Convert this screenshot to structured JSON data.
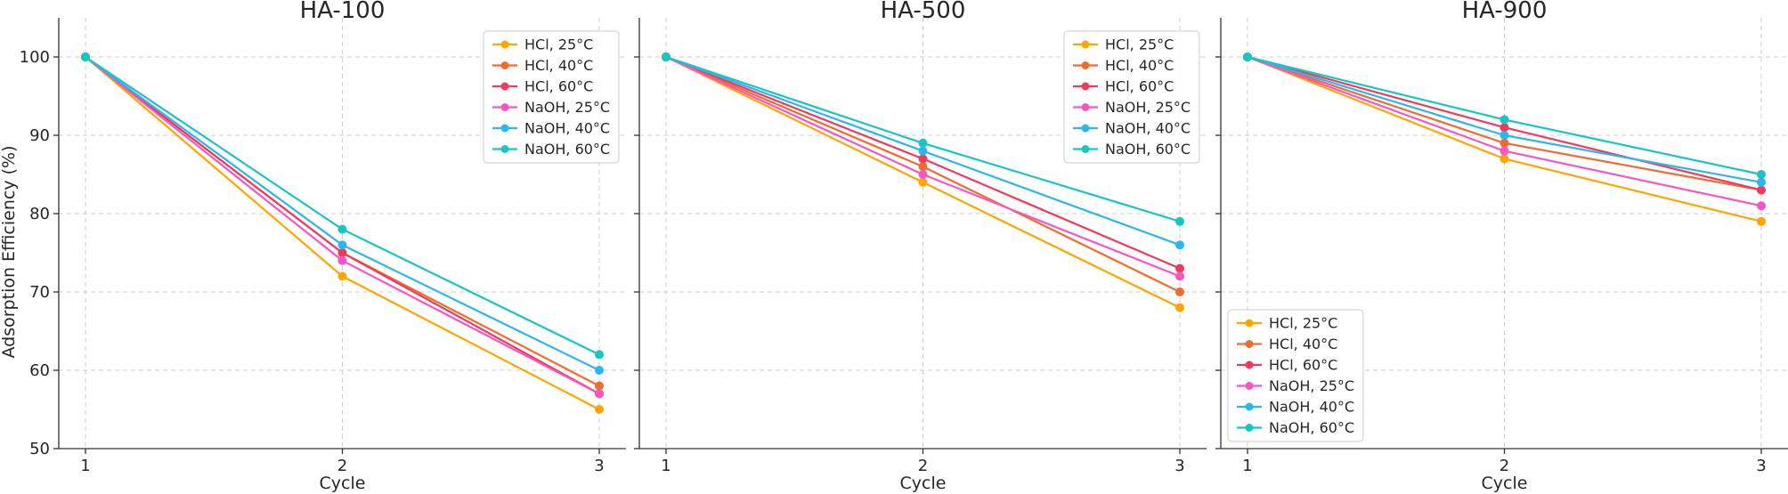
{
  "chart_data": {
    "type": "line",
    "xlabel": "Cycle",
    "ylabel": "Adsorption Efficiency (%)",
    "x": [
      1,
      2,
      3
    ],
    "ylim": [
      50,
      105
    ],
    "yticks": [
      50,
      60,
      70,
      80,
      90,
      100
    ],
    "grid": true,
    "colors": {
      "HCl, 25°C": "#FFA500",
      "HCl, 40°C": "#F26B2E",
      "HCl, 60°C": "#EF3A5D",
      "NaOH, 25°C": "#F556C3",
      "NaOH, 40°C": "#2DB5F0",
      "NaOH, 60°C": "#18C5C3"
    },
    "panels": [
      {
        "title": "HA-100",
        "legend": "top-right",
        "series": [
          {
            "name": "HCl, 25°C",
            "values": [
              100,
              72,
              55
            ]
          },
          {
            "name": "HCl, 40°C",
            "values": [
              100,
              75,
              58
            ]
          },
          {
            "name": "HCl, 60°C",
            "values": [
              100,
              75,
              57
            ]
          },
          {
            "name": "NaOH, 25°C",
            "values": [
              100,
              74,
              57
            ]
          },
          {
            "name": "NaOH, 40°C",
            "values": [
              100,
              76,
              60
            ]
          },
          {
            "name": "NaOH, 60°C",
            "values": [
              100,
              78,
              62
            ]
          }
        ]
      },
      {
        "title": "HA-500",
        "legend": "top-right",
        "series": [
          {
            "name": "HCl, 25°C",
            "values": [
              100,
              84,
              68
            ]
          },
          {
            "name": "HCl, 40°C",
            "values": [
              100,
              86,
              70
            ]
          },
          {
            "name": "HCl, 60°C",
            "values": [
              100,
              87,
              73
            ]
          },
          {
            "name": "NaOH, 25°C",
            "values": [
              100,
              85,
              72
            ]
          },
          {
            "name": "NaOH, 40°C",
            "values": [
              100,
              88,
              76
            ]
          },
          {
            "name": "NaOH, 60°C",
            "values": [
              100,
              89,
              79
            ]
          }
        ]
      },
      {
        "title": "HA-900",
        "legend": "bottom-left",
        "series": [
          {
            "name": "HCl, 25°C",
            "values": [
              100,
              87,
              79
            ]
          },
          {
            "name": "HCl, 40°C",
            "values": [
              100,
              89,
              83
            ]
          },
          {
            "name": "HCl, 60°C",
            "values": [
              100,
              91,
              83
            ]
          },
          {
            "name": "NaOH, 25°C",
            "values": [
              100,
              88,
              81
            ]
          },
          {
            "name": "NaOH, 40°C",
            "values": [
              100,
              90,
              84
            ]
          },
          {
            "name": "NaOH, 60°C",
            "values": [
              100,
              92,
              85
            ]
          }
        ]
      }
    ]
  }
}
